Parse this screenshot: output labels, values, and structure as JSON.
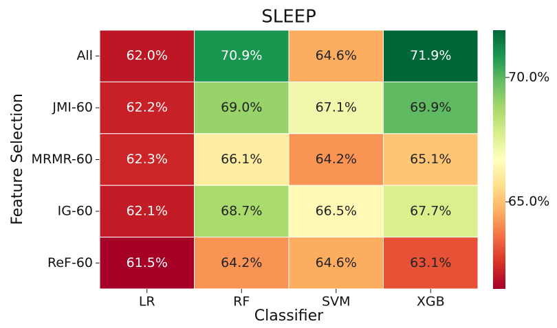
{
  "chart_data": {
    "type": "heatmap",
    "title": "SLEEP",
    "xlabel": "Classifier",
    "ylabel": "Feature Selection",
    "categories": [
      "LR",
      "RF",
      "SVM",
      "XGB"
    ],
    "rows": [
      "All",
      "JMI-60",
      "MRMR-60",
      "IG-60",
      "ReF-60"
    ],
    "values": [
      [
        62.0,
        70.9,
        64.6,
        71.9
      ],
      [
        62.2,
        69.0,
        67.1,
        69.9
      ],
      [
        62.3,
        66.1,
        64.2,
        65.1
      ],
      [
        62.1,
        68.7,
        66.5,
        67.7
      ],
      [
        61.5,
        64.2,
        64.6,
        63.1
      ]
    ],
    "value_labels": [
      [
        "62.0%",
        "70.9%",
        "64.6%",
        "71.9%"
      ],
      [
        "62.2%",
        "69.0%",
        "67.1%",
        "69.9%"
      ],
      [
        "62.3%",
        "66.1%",
        "64.2%",
        "65.1%"
      ],
      [
        "62.1%",
        "68.7%",
        "66.5%",
        "67.7%"
      ],
      [
        "61.5%",
        "64.2%",
        "64.6%",
        "63.1%"
      ]
    ],
    "colormap": [
      "#a50026",
      "#d73027",
      "#f46d43",
      "#fdae61",
      "#fee08b",
      "#ffffbf",
      "#d9ef8b",
      "#a6d96a",
      "#66bd63",
      "#1a9850",
      "#006837"
    ],
    "zlim": [
      61.5,
      71.9
    ],
    "zticks": [
      {
        "value": 65,
        "label": "65.0%"
      },
      {
        "value": 70,
        "label": "70.0%"
      }
    ]
  }
}
